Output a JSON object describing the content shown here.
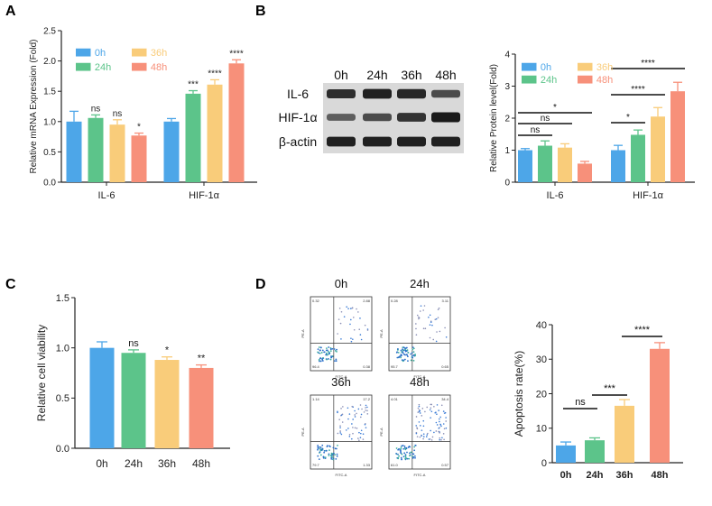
{
  "colors": {
    "h0": "#4DA6E8",
    "h24": "#5CC48A",
    "h36": "#F9CC7A",
    "h48": "#F7907A",
    "axis": "#222222",
    "blot": "#1a1a1a"
  },
  "panels": {
    "A": "A",
    "B": "B",
    "C": "C",
    "D": "D"
  },
  "chart_data": [
    {
      "id": "A",
      "type": "bar",
      "ylabel": "Relative mRNA Expression (Fold)",
      "ylim": [
        0,
        2.5
      ],
      "yticks": [
        "0.0",
        "0.5",
        "1.0",
        "1.5",
        "2.0",
        "2.5"
      ],
      "categories": [
        "IL-6",
        "HIF-1α"
      ],
      "legend": [
        "0h",
        "24h",
        "36h",
        "48h"
      ],
      "series": [
        {
          "name": "0h",
          "values": [
            1.0,
            1.0
          ],
          "errors": [
            0.17,
            0.05
          ]
        },
        {
          "name": "24h",
          "values": [
            1.06,
            1.46
          ],
          "errors": [
            0.05,
            0.05
          ]
        },
        {
          "name": "36h",
          "values": [
            0.95,
            1.61
          ],
          "errors": [
            0.08,
            0.08
          ]
        },
        {
          "name": "48h",
          "values": [
            0.77,
            1.96
          ],
          "errors": [
            0.04,
            0.06
          ]
        }
      ],
      "annotations": [
        [
          "",
          "ns",
          "ns",
          "*"
        ],
        [
          "",
          "***",
          "****",
          "****"
        ]
      ]
    },
    {
      "id": "B",
      "type": "bar",
      "ylabel": "Relative Protein level(Fold)",
      "ylim": [
        0,
        4
      ],
      "yticks": [
        "0",
        "1",
        "2",
        "3",
        "4"
      ],
      "categories": [
        "IL-6",
        "HIF-1α"
      ],
      "legend": [
        "0h",
        "24h",
        "36h",
        "48h"
      ],
      "series": [
        {
          "name": "0h",
          "values": [
            1.0,
            1.0
          ],
          "errors": [
            0.05,
            0.15
          ]
        },
        {
          "name": "24h",
          "values": [
            1.14,
            1.48
          ],
          "errors": [
            0.15,
            0.15
          ]
        },
        {
          "name": "36h",
          "values": [
            1.08,
            2.05
          ],
          "errors": [
            0.12,
            0.28
          ]
        },
        {
          "name": "48h",
          "values": [
            0.58,
            2.84
          ],
          "errors": [
            0.07,
            0.28
          ]
        }
      ],
      "brackets": [
        {
          "group": 0,
          "from": 0,
          "to": 1,
          "label": "ns"
        },
        {
          "group": 0,
          "from": 0,
          "to": 2,
          "label": "ns"
        },
        {
          "group": 0,
          "from": 0,
          "to": 3,
          "label": "*"
        },
        {
          "group": 1,
          "from": 0,
          "to": 1,
          "label": "*"
        },
        {
          "group": 1,
          "from": 0,
          "to": 2,
          "label": "****"
        },
        {
          "group": 1,
          "from": 0,
          "to": 3,
          "label": "****"
        }
      ]
    },
    {
      "id": "C",
      "type": "bar",
      "ylabel": "Relative cell viability",
      "ylim": [
        0,
        1.5
      ],
      "yticks": [
        "0.0",
        "0.5",
        "1.0",
        "1.5"
      ],
      "categories": [
        "0h",
        "24h",
        "36h",
        "48h"
      ],
      "values": [
        1.0,
        0.95,
        0.88,
        0.8
      ],
      "errors": [
        0.06,
        0.03,
        0.03,
        0.03
      ],
      "annotations": [
        "",
        "ns",
        "*",
        "**"
      ]
    },
    {
      "id": "D",
      "type": "bar",
      "ylabel": "Apoptosis rate(%)",
      "ylim": [
        0,
        40
      ],
      "yticks": [
        "0",
        "10",
        "20",
        "30",
        "40"
      ],
      "categories": [
        "0h",
        "24h",
        "36h",
        "48h"
      ],
      "values": [
        5.0,
        6.5,
        16.5,
        33.0
      ],
      "errors": [
        1.0,
        0.7,
        1.8,
        1.8
      ],
      "brackets": [
        {
          "from": 0,
          "to": 1,
          "label": "ns"
        },
        {
          "from": 1,
          "to": 2,
          "label": "***"
        },
        {
          "from": 2,
          "to": 3,
          "label": "****"
        }
      ]
    }
  ],
  "western_blot": {
    "lanes": [
      "0h",
      "24h",
      "36h",
      "48h"
    ],
    "rows": [
      {
        "label": "IL-6",
        "intensity": [
          0.85,
          0.95,
          0.9,
          0.6
        ]
      },
      {
        "label": "HIF-1α",
        "intensity": [
          0.45,
          0.6,
          0.8,
          1.0
        ]
      },
      {
        "label": "β-actin",
        "intensity": [
          0.95,
          0.95,
          0.95,
          0.95
        ]
      }
    ]
  },
  "flow_cytometry": {
    "plots": [
      {
        "title": "0h",
        "q1": "0.32",
        "q2": "2.88",
        "q3": "0.38",
        "q4": "96.4",
        "density": 0.25
      },
      {
        "title": "24h",
        "q1": "0.28",
        "q2": "3.11",
        "q3": "0.65",
        "q4": "95.7",
        "density": 0.3
      },
      {
        "title": "36h",
        "q1": "1.14",
        "q2": "17.2",
        "q3": "1.33",
        "q4": "79.7",
        "density": 0.7
      },
      {
        "title": "48h",
        "q1": "4.01",
        "q2": "34.4",
        "q3": "0.57",
        "q4": "61.0",
        "density": 1.0
      }
    ],
    "xlabel": "FITC-A",
    "ylabel": "PE-A"
  }
}
